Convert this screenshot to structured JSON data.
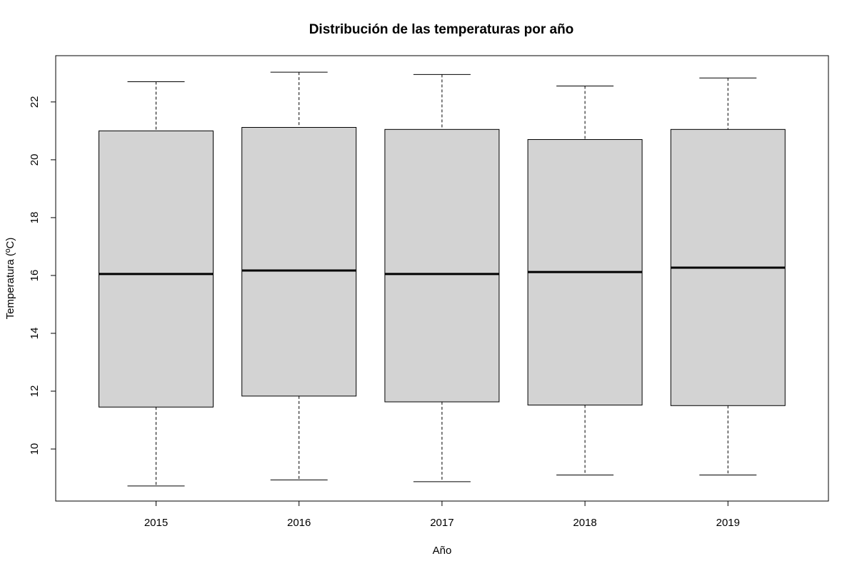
{
  "chart_data": {
    "type": "boxplot",
    "title": "Distribución de las temperaturas por año",
    "xlabel": "Año",
    "ylabel": "Temperatura (ºC)",
    "ylim": [
      8.2,
      23.6
    ],
    "yticks": [
      "10",
      "12",
      "14",
      "16",
      "18",
      "20",
      "22"
    ],
    "categories": [
      "2015",
      "2016",
      "2017",
      "2018",
      "2019"
    ],
    "boxes": [
      {
        "category": "2015",
        "min": 8.72,
        "q1": 11.45,
        "median": 16.05,
        "q3": 21.0,
        "max": 22.7
      },
      {
        "category": "2016",
        "min": 8.93,
        "q1": 11.83,
        "median": 16.17,
        "q3": 21.12,
        "max": 23.03
      },
      {
        "category": "2017",
        "min": 8.87,
        "q1": 11.63,
        "median": 16.05,
        "q3": 21.05,
        "max": 22.95
      },
      {
        "category": "2018",
        "min": 9.1,
        "q1": 11.52,
        "median": 16.12,
        "q3": 20.7,
        "max": 22.55
      },
      {
        "category": "2019",
        "min": 9.1,
        "q1": 11.5,
        "median": 16.27,
        "q3": 21.05,
        "max": 22.83
      }
    ],
    "box_fill": "#d3d3d3",
    "line_color": "#000000",
    "grid": false,
    "legend": "none"
  }
}
